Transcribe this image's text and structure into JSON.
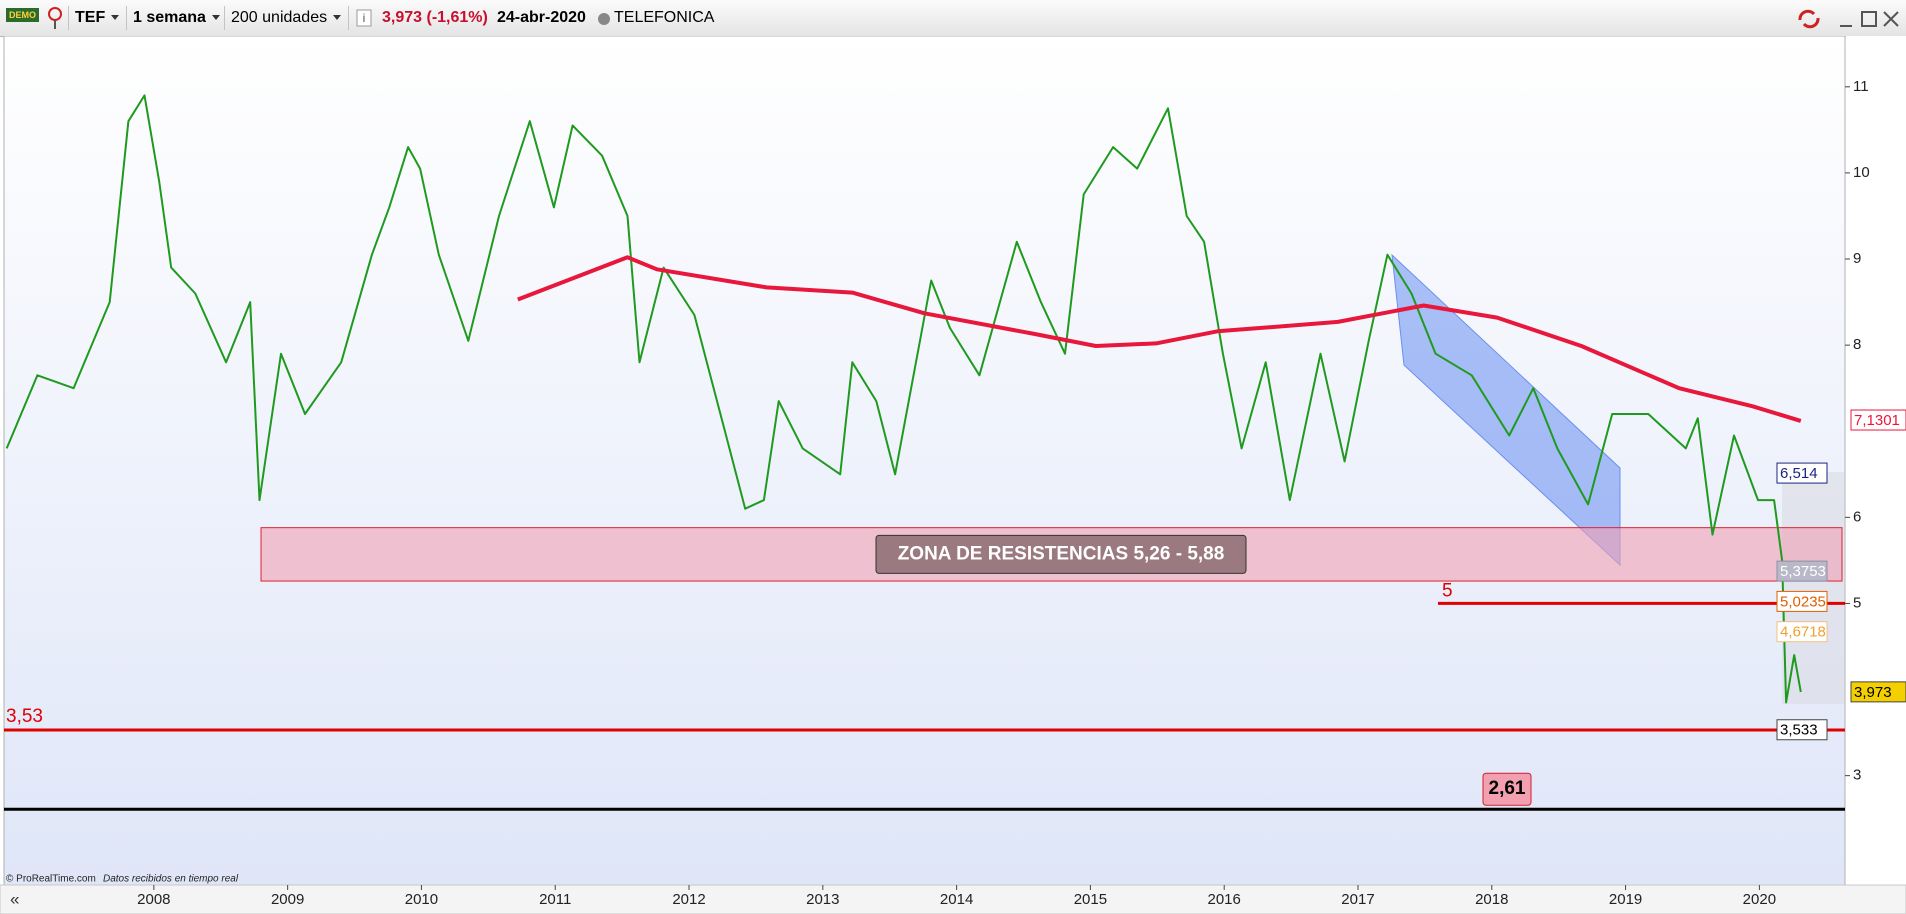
{
  "toolbar": {
    "demo": "DEMO",
    "symbol": "TEF",
    "period": "1 semana",
    "units": "200 unidades",
    "quote": "3,973 (-1,61%)",
    "date": "24-abr-2020",
    "name": "TELEFONICA"
  },
  "chart_data": {
    "type": "line",
    "xlim": [
      2006.88,
      2020.64
    ],
    "ylim": [
      1.73,
      11.59
    ],
    "xticks": [
      2008,
      2009,
      2010,
      2011,
      2012,
      2013,
      2014,
      2015,
      2016,
      2017,
      2018,
      2019,
      2020
    ],
    "yticks": [
      3,
      5,
      6,
      8,
      9,
      10,
      11
    ],
    "series": [
      {
        "color": "#1f9a1f",
        "x": [
          2006.9,
          2007.13,
          2007.4,
          2007.67,
          2007.81,
          2007.93,
          2008.04,
          2008.13,
          2008.31,
          2008.54,
          2008.72,
          2008.79,
          2008.95,
          2009.13,
          2009.4,
          2009.63,
          2009.76,
          2009.9,
          2009.99,
          2010.13,
          2010.35,
          2010.58,
          2010.81,
          2010.99,
          2011.13,
          2011.35,
          2011.54,
          2011.63,
          2011.81,
          2012.04,
          2012.26,
          2012.42,
          2012.56,
          2012.67,
          2012.85,
          2013.13,
          2013.22,
          2013.4,
          2013.54,
          2013.81,
          2013.95,
          2014.17,
          2014.45,
          2014.63,
          2014.81,
          2014.95,
          2015.17,
          2015.35,
          2015.58,
          2015.72,
          2015.85,
          2015.99,
          2016.13,
          2016.31,
          2016.49,
          2016.72,
          2016.9,
          2017.08,
          2017.22,
          2017.4,
          2017.58,
          2017.85,
          2018.13,
          2018.31,
          2018.49,
          2018.72,
          2018.9,
          2019.17,
          2019.45,
          2019.54,
          2019.65,
          2019.81,
          2019.99,
          2020.11,
          2020.17,
          2020.2,
          2020.26,
          2020.31
        ],
        "values": [
          6.8,
          7.65,
          7.5,
          8.5,
          10.6,
          10.9,
          9.9,
          8.9,
          8.6,
          7.8,
          8.5,
          6.2,
          7.9,
          7.2,
          7.8,
          9.05,
          9.6,
          10.3,
          10.05,
          9.05,
          8.05,
          9.5,
          10.6,
          9.6,
          10.55,
          10.2,
          9.5,
          7.8,
          8.9,
          8.35,
          7.05,
          6.1,
          6.2,
          7.35,
          6.8,
          6.5,
          7.8,
          7.35,
          6.5,
          8.75,
          8.2,
          7.65,
          9.2,
          8.5,
          7.9,
          9.75,
          10.3,
          10.05,
          10.75,
          9.5,
          9.2,
          7.9,
          6.8,
          7.8,
          6.2,
          7.9,
          6.65,
          8.05,
          9.05,
          8.6,
          7.9,
          7.65,
          6.95,
          7.5,
          6.8,
          6.15,
          7.2,
          7.2,
          6.8,
          7.15,
          5.8,
          6.95,
          6.2,
          6.2,
          5.5,
          3.85,
          4.4,
          3.973
        ]
      },
      {
        "color": "#e8173c",
        "x": [
          2010.72,
          2011.54,
          2011.76,
          2012.58,
          2013.22,
          2013.76,
          2014.58,
          2015.04,
          2015.49,
          2015.95,
          2016.85,
          2017.49,
          2018.04,
          2018.67,
          2019.4,
          2019.95,
          2020.31
        ],
        "values": [
          8.53,
          9.02,
          8.88,
          8.67,
          8.61,
          8.37,
          8.13,
          7.99,
          8.02,
          8.16,
          8.27,
          8.46,
          8.32,
          7.99,
          7.5,
          7.29,
          7.12
        ]
      }
    ],
    "zone": {
      "label": "ZONA DE RESISTENCIAS 5,26 - 5,88",
      "low": 5.26,
      "high": 5.88
    },
    "levels": [
      {
        "value": 5,
        "color": "#e00000"
      },
      {
        "value": 3.53,
        "label": "3,53",
        "color": "#e00000"
      },
      {
        "value": 2.61,
        "label": "2,61",
        "color": "#000000"
      }
    ],
    "price_labels": [
      {
        "value": 7.1301,
        "label": "7,1301",
        "color": "#e8173c"
      },
      {
        "value": 6.514,
        "label": "6,514",
        "color": "#1a237e"
      },
      {
        "value": 5.3753,
        "label": "5,3753",
        "color": "#ffffff"
      },
      {
        "value": 5.0235,
        "label": "5,0235",
        "color": "#e06000"
      },
      {
        "value": 4.6718,
        "label": "4,6718",
        "color": "#f0a030"
      },
      {
        "value": 3.973,
        "label": "3,973",
        "color": "#000000"
      },
      {
        "value": 3.533,
        "label": "3,533",
        "color": "#000000"
      }
    ]
  },
  "footer": {
    "copyright": "© ProRealTime.com",
    "status": "Datos recibidos en tiempo real"
  }
}
